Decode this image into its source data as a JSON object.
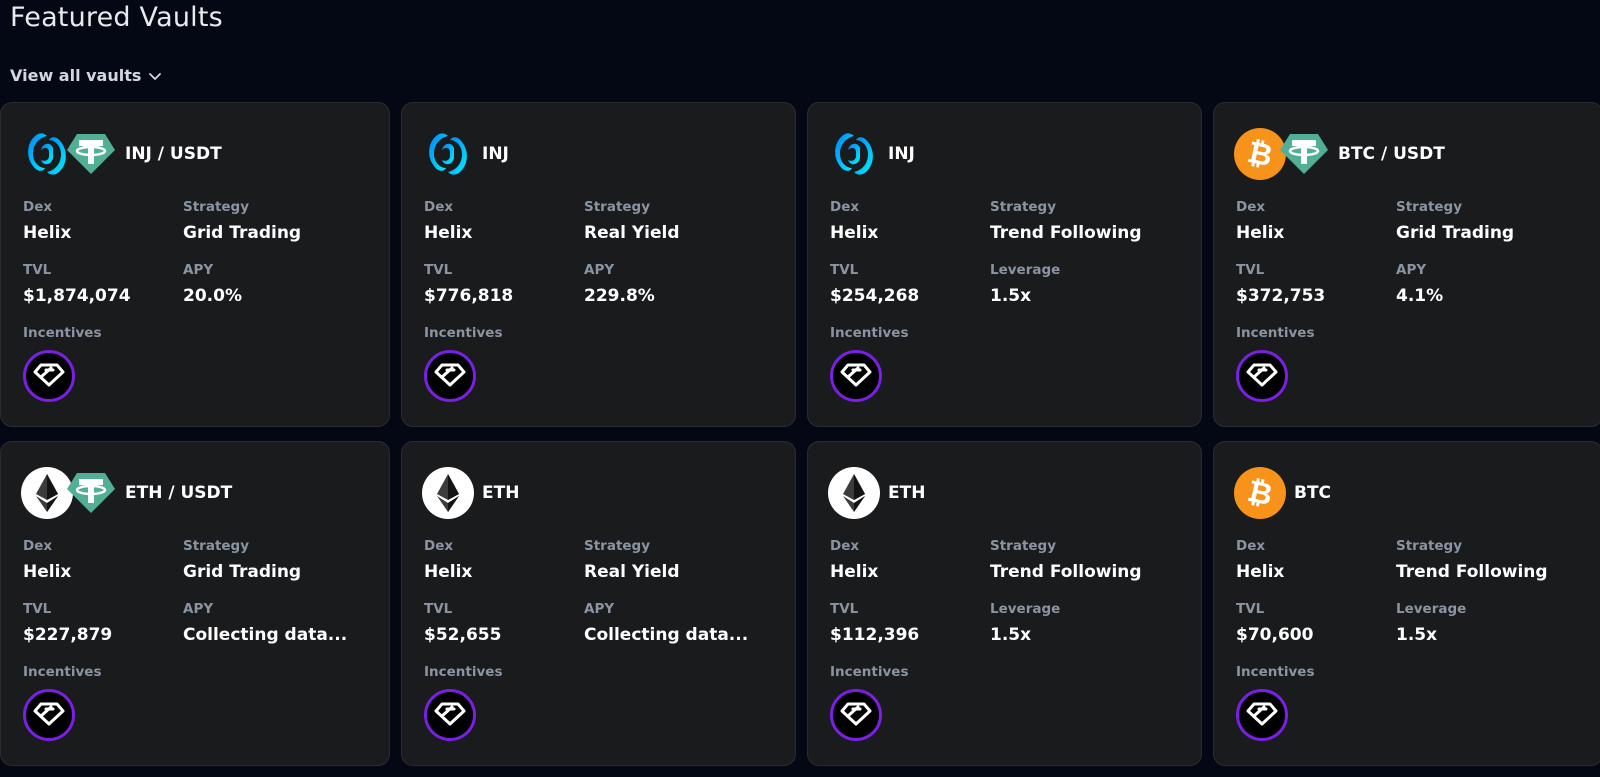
{
  "header": {
    "title": "Featured Vaults",
    "view_all_label": "View all vaults"
  },
  "labels": {
    "dex": "Dex",
    "strategy": "Strategy",
    "tvl": "TVL",
    "incentives": "Incentives"
  },
  "colors": {
    "background": "#040814",
    "card": "#1a1b1d",
    "label": "#8a95a3",
    "incentive_ring": "#7b1fe4",
    "inj_blue": "#0ea5ff",
    "tether_green": "#50af95",
    "bitcoin_orange": "#f7931a"
  },
  "vaults": [
    {
      "tokens": [
        "injective-icon",
        "tether-icon"
      ],
      "pair": "INJ / USDT",
      "dex": "Helix",
      "strategy": "Grid Trading",
      "tvl": "$1,874,074",
      "metric_label": "APY",
      "metric_value": "20.0%",
      "incentive_icon": "diamond-icon"
    },
    {
      "tokens": [
        "injective-icon"
      ],
      "pair": "INJ",
      "dex": "Helix",
      "strategy": "Real Yield",
      "tvl": "$776,818",
      "metric_label": "APY",
      "metric_value": "229.8%",
      "incentive_icon": "diamond-icon"
    },
    {
      "tokens": [
        "injective-icon"
      ],
      "pair": "INJ",
      "dex": "Helix",
      "strategy": "Trend Following",
      "tvl": "$254,268",
      "metric_label": "Leverage",
      "metric_value": "1.5x",
      "incentive_icon": "diamond-icon"
    },
    {
      "tokens": [
        "bitcoin-icon",
        "tether-icon"
      ],
      "pair": "BTC / USDT",
      "dex": "Helix",
      "strategy": "Grid Trading",
      "tvl": "$372,753",
      "metric_label": "APY",
      "metric_value": "4.1%",
      "incentive_icon": "diamond-icon"
    },
    {
      "tokens": [
        "ethereum-icon",
        "tether-icon"
      ],
      "pair": "ETH / USDT",
      "dex": "Helix",
      "strategy": "Grid Trading",
      "tvl": "$227,879",
      "metric_label": "APY",
      "metric_value": "Collecting data...",
      "incentive_icon": "diamond-icon"
    },
    {
      "tokens": [
        "ethereum-icon"
      ],
      "pair": "ETH",
      "dex": "Helix",
      "strategy": "Real Yield",
      "tvl": "$52,655",
      "metric_label": "APY",
      "metric_value": "Collecting data...",
      "incentive_icon": "diamond-icon"
    },
    {
      "tokens": [
        "ethereum-icon"
      ],
      "pair": "ETH",
      "dex": "Helix",
      "strategy": "Trend Following",
      "tvl": "$112,396",
      "metric_label": "Leverage",
      "metric_value": "1.5x",
      "incentive_icon": "diamond-icon"
    },
    {
      "tokens": [
        "bitcoin-icon"
      ],
      "pair": "BTC",
      "dex": "Helix",
      "strategy": "Trend Following",
      "tvl": "$70,600",
      "metric_label": "Leverage",
      "metric_value": "1.5x",
      "incentive_icon": "diamond-icon"
    }
  ]
}
